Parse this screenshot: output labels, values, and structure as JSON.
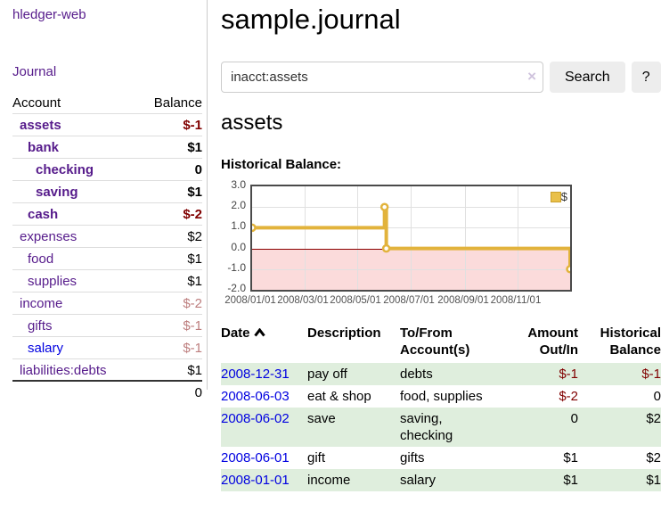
{
  "brand": "hledger-web",
  "nav": {
    "journal_label": "Journal"
  },
  "sidebar_table": {
    "account_header": "Account",
    "balance_header": "Balance",
    "rows": [
      {
        "name": "assets",
        "level": 1,
        "bold": true,
        "balance": "$-1",
        "balance_class": "neg"
      },
      {
        "name": "bank",
        "level": 2,
        "bold": true,
        "balance": "$1",
        "balance_class": ""
      },
      {
        "name": "checking",
        "level": 3,
        "bold": true,
        "balance": "0",
        "balance_class": ""
      },
      {
        "name": "saving",
        "level": 3,
        "bold": true,
        "balance": "$1",
        "balance_class": ""
      },
      {
        "name": "cash",
        "level": 2,
        "bold": true,
        "balance": "$-2",
        "balance_class": "neg"
      },
      {
        "name": "expenses",
        "level": 1,
        "bold": false,
        "balance": "$2",
        "balance_class": ""
      },
      {
        "name": "food",
        "level": 2,
        "bold": false,
        "balance": "$1",
        "balance_class": ""
      },
      {
        "name": "supplies",
        "level": 2,
        "bold": false,
        "balance": "$1",
        "balance_class": ""
      },
      {
        "name": "income",
        "level": 1,
        "bold": false,
        "balance": "$-2",
        "balance_class": "neglight"
      },
      {
        "name": "gifts",
        "level": 2,
        "bold": false,
        "balance": "$-1",
        "balance_class": "neglight"
      },
      {
        "name": "salary",
        "level": 2,
        "bold": false,
        "balance": "$-1",
        "balance_class": "neglight",
        "link_blue": true
      },
      {
        "name": "liabilities:debts",
        "level": 1,
        "bold": false,
        "balance": "$1",
        "balance_class": "",
        "sep_below": true
      }
    ],
    "total": "0"
  },
  "main": {
    "title": "sample.journal",
    "search": {
      "value": "inacct:assets",
      "clear_icon": "×",
      "button_label": "Search",
      "help_label": "?"
    },
    "account_heading": "assets",
    "chart_label": "Historical Balance:"
  },
  "chart_data": {
    "type": "line",
    "title": "Historical Balance:",
    "step": true,
    "series": [
      {
        "name": "$",
        "points": [
          [
            "2008-01-01",
            1
          ],
          [
            "2008-06-01",
            2
          ],
          [
            "2008-06-03",
            0
          ],
          [
            "2008-12-31",
            -1
          ]
        ]
      }
    ],
    "x_start": "2008-01-01",
    "x_days": 365,
    "ylim": [
      -2,
      3
    ],
    "yticks": [
      "3.0",
      "2.0",
      "1.0",
      "0.0",
      "-1.0",
      "-2.0"
    ],
    "ytick_values": [
      3,
      2,
      1,
      0,
      -1,
      -2
    ],
    "xticks": [
      "2008/01/01",
      "2008/03/01",
      "2008/05/01",
      "2008/07/01",
      "2008/09/01",
      "2008/11/01"
    ],
    "xtick_days": [
      0,
      60,
      121,
      182,
      244,
      305
    ],
    "grid": true,
    "legend_position": "top-right",
    "legend_label": "$",
    "line_color": "#e2b33c",
    "negative_region_color": "#fbdbdb",
    "zero_line_color": "#8b0000"
  },
  "register_table": {
    "headers": {
      "date": "Date",
      "description": "Description",
      "accounts": "To/From Account(s)",
      "amount": "Amount Out/In",
      "balance": "Historical Balance"
    },
    "rows": [
      {
        "date": "2008-12-31",
        "description": "pay off",
        "accounts": "debts",
        "amount": "$-1",
        "amount_class": "neg",
        "balance": "$-1",
        "balance_class": "neg"
      },
      {
        "date": "2008-06-03",
        "description": "eat & shop",
        "accounts": "food, supplies",
        "amount": "$-2",
        "amount_class": "neg",
        "balance": "0",
        "balance_class": ""
      },
      {
        "date": "2008-06-02",
        "description": "save",
        "accounts": "saving, checking",
        "amount": "0",
        "amount_class": "",
        "balance": "$2",
        "balance_class": ""
      },
      {
        "date": "2008-06-01",
        "description": "gift",
        "accounts": "gifts",
        "amount": "$1",
        "amount_class": "",
        "balance": "$2",
        "balance_class": ""
      },
      {
        "date": "2008-01-01",
        "description": "income",
        "accounts": "salary",
        "amount": "$1",
        "amount_class": "",
        "balance": "$1",
        "balance_class": ""
      }
    ]
  },
  "colors": {
    "link_purple": "#561b8b",
    "link_blue": "#0000e0",
    "negative": "#800000",
    "negative_dim": "#bd7e7e",
    "row_stripe_green": "#dfeedd",
    "chart_line_gold": "#e2b33c",
    "chart_negative_fill": "#fbdbdb",
    "chart_zero_line": "#8b0000"
  }
}
